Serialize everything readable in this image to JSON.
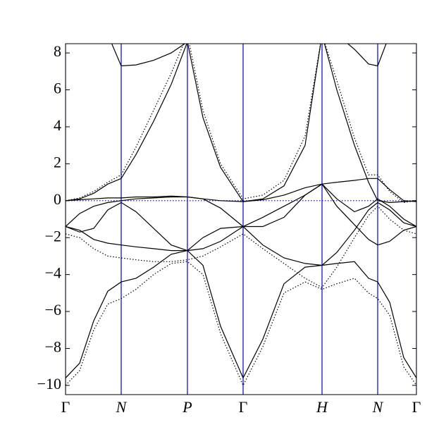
{
  "chart_data": {
    "type": "line",
    "xlim": [
      0,
      4.98
    ],
    "ylim": [
      -10.5,
      8.5
    ],
    "yticks": [
      {
        "value": -10,
        "label": "−10"
      },
      {
        "value": -8,
        "label": "−8"
      },
      {
        "value": -6,
        "label": "−6"
      },
      {
        "value": -4,
        "label": "−4"
      },
      {
        "value": -2,
        "label": "−2"
      },
      0,
      2,
      4,
      6,
      8
    ],
    "xticks": [
      {
        "value": 0,
        "label": "Γ"
      },
      {
        "value": 0.79,
        "label": "N"
      },
      {
        "value": 1.73,
        "label": "P"
      },
      {
        "value": 2.52,
        "label": "Γ"
      },
      {
        "value": 3.64,
        "label": "H"
      },
      {
        "value": 4.43,
        "label": "N"
      },
      {
        "value": 4.98,
        "label": "Γ"
      }
    ],
    "grid_color": "#0000cc",
    "hline": 0,
    "x": [
      0,
      0.2,
      0.4,
      0.6,
      0.79,
      1.0,
      1.25,
      1.5,
      1.73,
      1.95,
      2.2,
      2.52,
      2.8,
      3.1,
      3.4,
      3.64,
      3.85,
      4.1,
      4.3,
      4.43,
      4.6,
      4.8,
      4.98
    ],
    "series": [
      {
        "color": "#000000",
        "dash": "solid",
        "values": [
          -9.6,
          -8.8,
          -6.5,
          -4.9,
          -4.4,
          -4.2,
          -3.6,
          -2.9,
          -2.7,
          -3.5,
          -6.8,
          -9.6,
          -7.5,
          -4.5,
          -3.6,
          -3.5,
          -3.4,
          -3.3,
          -4.2,
          -4.4,
          -5.5,
          -8.5,
          -9.6
        ]
      },
      {
        "color": "#000000",
        "dash": "solid",
        "values": [
          -1.4,
          -1.6,
          -2.1,
          -2.3,
          -2.4,
          -2.5,
          -2.6,
          -2.7,
          -2.7,
          -2.6,
          -2.2,
          -1.4,
          -2.4,
          -3.1,
          -3.4,
          -3.5,
          -2.8,
          -1.6,
          -0.5,
          -0.1,
          -0.5,
          -1.2,
          -1.4
        ]
      },
      {
        "color": "#000000",
        "dash": "solid",
        "values": [
          -1.4,
          -1.7,
          -1.5,
          -0.5,
          -0.1,
          -0.6,
          -1.5,
          -2.4,
          -2.7,
          -2.0,
          -1.5,
          -1.4,
          -1.4,
          -0.9,
          0.3,
          0.9,
          -0.3,
          -1.3,
          -2.1,
          -2.4,
          -2.2,
          -1.6,
          -1.4
        ]
      },
      {
        "color": "#000000",
        "dash": "solid",
        "values": [
          -1.4,
          -0.7,
          -0.3,
          -0.1,
          0.0,
          0.1,
          0.15,
          0.2,
          0.2,
          0.1,
          -0.4,
          -1.4,
          -0.9,
          -0.3,
          0.3,
          0.9,
          0.1,
          -0.6,
          -0.3,
          0.1,
          -0.3,
          -1.0,
          -1.4
        ]
      },
      {
        "color": "#000000",
        "dash": "solid",
        "values": [
          0,
          0.05,
          0.1,
          0.15,
          0.15,
          0.2,
          0.2,
          0.25,
          0.2,
          0.1,
          0.0,
          -0.05,
          0.05,
          0.3,
          0.7,
          0.9,
          1.0,
          1.1,
          1.2,
          1.2,
          0.6,
          0.0,
          -0.05
        ]
      },
      {
        "color": "#000000",
        "dash": "solid",
        "values": [
          0,
          0.1,
          0.4,
          0.9,
          1.2,
          2.5,
          4.3,
          6.3,
          8.6,
          4.5,
          1.8,
          -0.05,
          0.1,
          0.8,
          3.0,
          9.0,
          6.0,
          3.0,
          1.0,
          0.0,
          -0.1,
          -0.05,
          0
        ]
      },
      {
        "color": "#000000",
        "dash": "solid",
        "values": [
          null,
          null,
          null,
          9.0,
          7.3,
          7.35,
          7.6,
          8.0,
          8.6,
          null,
          null,
          null,
          null,
          null,
          null,
          9.0,
          9.0,
          8.2,
          7.4,
          7.3,
          9.0,
          null,
          null
        ]
      },
      {
        "color": "#000000",
        "dash": "dotted",
        "values": [
          -10.0,
          -9.2,
          -7.0,
          -5.6,
          -5.3,
          -4.8,
          -4.0,
          -3.4,
          -3.3,
          -4.0,
          -7.2,
          -10.0,
          -7.9,
          -5.0,
          -4.4,
          -4.8,
          -4.5,
          -4.2,
          -5.0,
          -5.3,
          -6.2,
          -9.0,
          -10.0
        ]
      },
      {
        "color": "#000000",
        "dash": "dotted",
        "values": [
          -1.8,
          -2.0,
          -2.6,
          -3.0,
          -3.1,
          -3.2,
          -3.3,
          -3.3,
          -3.2,
          -3.0,
          -2.5,
          -1.8,
          -2.6,
          -3.4,
          -4.2,
          -4.7,
          -3.6,
          -2.0,
          -0.8,
          -0.3,
          -1.0,
          -1.6,
          -1.8
        ]
      },
      {
        "color": "#000000",
        "dash": "dotted",
        "values": [
          0,
          0.15,
          0.5,
          1.0,
          1.4,
          2.9,
          4.9,
          6.9,
          9.0,
          4.9,
          2.0,
          0.1,
          0.3,
          1.1,
          3.5,
          9.0,
          6.5,
          3.4,
          1.4,
          1.4,
          0.5,
          -0.1,
          0
        ]
      }
    ]
  }
}
